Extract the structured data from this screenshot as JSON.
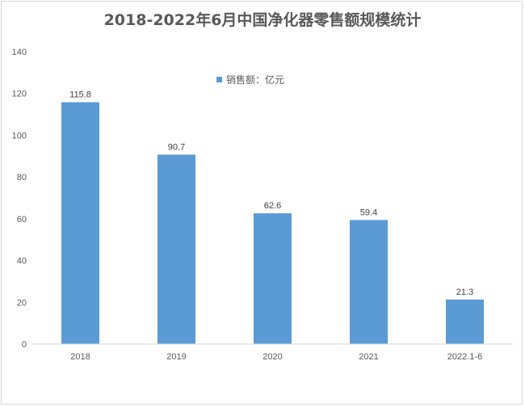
{
  "chart_data": {
    "type": "bar",
    "title": "2018-2022年6月中国净化器零售额规模统计",
    "categories": [
      "2018",
      "2019",
      "2020",
      "2021",
      "2022.1-6"
    ],
    "series": [
      {
        "name": "销售额：亿元",
        "values": [
          115.8,
          90.7,
          62.6,
          59.4,
          21.3
        ]
      }
    ],
    "ylim": [
      0,
      140
    ],
    "yticks": [
      0,
      20,
      40,
      60,
      80,
      100,
      120,
      140
    ],
    "xlabel": "",
    "ylabel": "",
    "grid": false,
    "legend_position": "top-center",
    "bar_color": "#5b9bd5"
  }
}
